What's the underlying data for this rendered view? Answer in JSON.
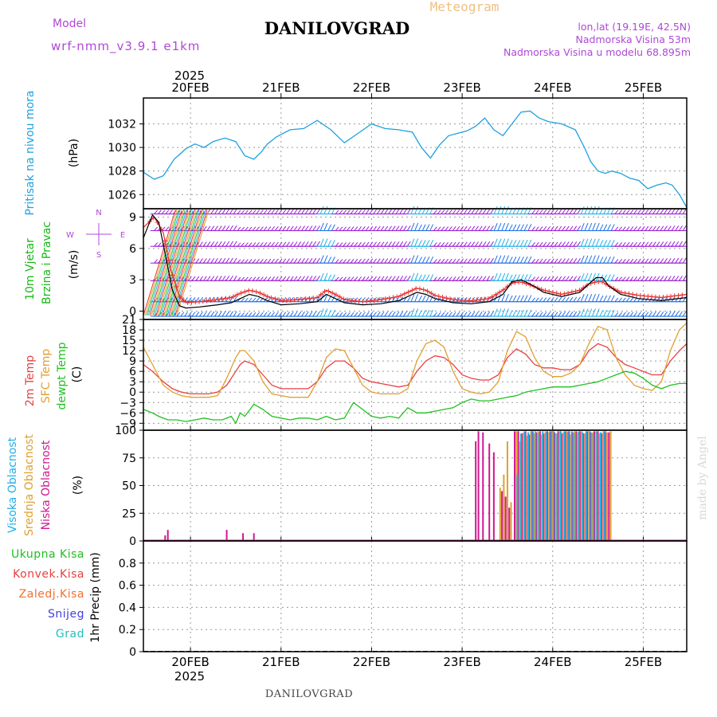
{
  "header": {
    "meteogram_label": "Meteogram",
    "model_label": "Model",
    "model_name": "wrf-nmm_v3.9.1 e1km",
    "station_title": "DANILOVGRAD",
    "lonlat": "lon,lat (19.19E, 42.5N)",
    "altitude": "Nadmorska Visina 53m",
    "model_altitude": "Nadmorska Visina u modelu 68.895m",
    "footer_station": "DANILOVGRAD",
    "credit": "made by Angel"
  },
  "colors": {
    "pressure": "#1fa0e0",
    "wind_label": "#18b818",
    "wind_barb_purple": "#9a1fd6",
    "wind_barb_blue": "#1f6fe8",
    "wind_barb_cyan": "#1fb0e8",
    "wind_gust": "#e83030",
    "wind_speed_line": "#000000",
    "temp_2m": "#e84040",
    "sfc_temp": "#e0a030",
    "dewpt": "#20c020",
    "cloud_high": "#1fb0e8",
    "cloud_mid": "#e0a030",
    "cloud_low": "#d01890",
    "precip_total": "#20c020",
    "precip_conv": "#e84040",
    "precip_frozen": "#f07030",
    "precip_snow": "#4040e0",
    "precip_grad": "#20c0c0",
    "title_purple": "#b048d8",
    "meteogram_gold": "#f0c080"
  },
  "chart_data": [
    {
      "type": "line",
      "panel": "pressure",
      "ylabel": "(hPa)",
      "side_labels": [
        "Pritisak na nivou mora"
      ],
      "x_unit": "days since 20FEB 00:00",
      "xlim": [
        -0.52,
        5.48
      ],
      "ylim": [
        1024.8,
        1034.2
      ],
      "yticks": [
        1026,
        1028,
        1030,
        1032
      ],
      "series": [
        {
          "name": "Pritisak na nivou mora",
          "x": [
            -0.52,
            -0.4,
            -0.3,
            -0.18,
            -0.05,
            0.05,
            0.15,
            0.25,
            0.38,
            0.5,
            0.6,
            0.7,
            0.78,
            0.85,
            0.95,
            1.1,
            1.25,
            1.4,
            1.55,
            1.7,
            1.85,
            2.0,
            2.15,
            2.3,
            2.45,
            2.55,
            2.65,
            2.75,
            2.85,
            2.95,
            3.05,
            3.15,
            3.25,
            3.35,
            3.45,
            3.55,
            3.65,
            3.75,
            3.85,
            3.95,
            4.1,
            4.25,
            4.35,
            4.42,
            4.5,
            4.58,
            4.65,
            4.75,
            4.85,
            4.95,
            5.05,
            5.15,
            5.25,
            5.32,
            5.4,
            5.48
          ],
          "values": [
            1027.9,
            1027.3,
            1027.6,
            1029.0,
            1029.9,
            1030.3,
            1030.0,
            1030.5,
            1030.8,
            1030.5,
            1029.3,
            1029.0,
            1029.6,
            1030.3,
            1030.9,
            1031.5,
            1031.6,
            1032.3,
            1031.5,
            1030.4,
            1031.2,
            1032.0,
            1031.6,
            1031.5,
            1031.3,
            1030.0,
            1029.1,
            1030.2,
            1031.0,
            1031.2,
            1031.4,
            1031.8,
            1032.5,
            1031.5,
            1031.0,
            1032.0,
            1033.0,
            1033.1,
            1032.5,
            1032.2,
            1032.0,
            1031.5,
            1030.0,
            1028.8,
            1028.0,
            1027.8,
            1028.0,
            1027.8,
            1027.4,
            1027.2,
            1026.5,
            1026.8,
            1027.0,
            1026.8,
            1026.0,
            1024.9
          ]
        }
      ]
    },
    {
      "type": "line",
      "panel": "wind",
      "ylabel": "(m/s)",
      "side_labels": [
        "10m Vjetar",
        "Brzina i Pravac"
      ],
      "compass": [
        "N",
        "S",
        "W",
        "E"
      ],
      "x_unit": "days since 20FEB 00:00",
      "xlim": [
        -0.52,
        5.48
      ],
      "ylim": [
        -0.8,
        9.8
      ],
      "yticks": [
        0,
        3,
        6,
        9
      ],
      "barb_levels": [
        -0.5,
        0.9,
        2.9,
        4.6,
        6.2,
        7.7,
        9.3
      ],
      "series": [
        {
          "name": "Brzina",
          "x": [
            -0.52,
            -0.42,
            -0.35,
            -0.28,
            -0.2,
            -0.12,
            -0.05,
            0.1,
            0.3,
            0.45,
            0.55,
            0.65,
            0.75,
            0.85,
            1.0,
            1.2,
            1.4,
            1.5,
            1.6,
            1.7,
            1.9,
            2.1,
            2.3,
            2.4,
            2.5,
            2.6,
            2.7,
            2.9,
            3.1,
            3.3,
            3.45,
            3.55,
            3.65,
            3.75,
            3.9,
            4.1,
            4.3,
            4.4,
            4.48,
            4.55,
            4.62,
            4.75,
            4.95,
            5.2,
            5.48
          ],
          "values": [
            7.0,
            9.2,
            8.5,
            5.5,
            2.0,
            0.5,
            0.3,
            0.4,
            0.6,
            0.8,
            1.2,
            1.6,
            1.4,
            1.0,
            0.6,
            0.7,
            0.9,
            1.6,
            1.2,
            0.8,
            0.6,
            0.7,
            1.0,
            1.4,
            1.8,
            1.6,
            1.2,
            0.8,
            0.7,
            0.9,
            1.6,
            2.8,
            3.0,
            2.6,
            1.8,
            1.4,
            1.8,
            2.6,
            3.2,
            3.2,
            2.4,
            1.6,
            1.2,
            1.0,
            1.3
          ]
        },
        {
          "name": "Udar",
          "x": [
            -0.52,
            -0.4,
            -0.3,
            -0.22,
            -0.12,
            -0.05,
            0.1,
            0.3,
            0.45,
            0.55,
            0.65,
            0.75,
            0.85,
            1.0,
            1.2,
            1.4,
            1.5,
            1.6,
            1.7,
            1.9,
            2.1,
            2.3,
            2.4,
            2.5,
            2.6,
            2.7,
            2.9,
            3.1,
            3.3,
            3.45,
            3.55,
            3.65,
            3.75,
            3.9,
            4.1,
            4.3,
            4.4,
            4.48,
            4.55,
            4.62,
            4.75,
            4.95,
            5.2,
            5.48
          ],
          "values": [
            8.0,
            9.0,
            7.5,
            4.0,
            1.4,
            0.8,
            0.9,
            1.1,
            1.3,
            1.7,
            2.0,
            1.8,
            1.4,
            1.0,
            1.1,
            1.3,
            2.0,
            1.6,
            1.1,
            0.9,
            1.1,
            1.4,
            1.8,
            2.2,
            2.0,
            1.5,
            1.1,
            1.0,
            1.2,
            2.0,
            2.7,
            2.8,
            2.5,
            2.0,
            1.6,
            2.0,
            2.6,
            2.8,
            2.8,
            2.4,
            1.8,
            1.5,
            1.3,
            1.6
          ]
        }
      ]
    },
    {
      "type": "line",
      "panel": "temperature",
      "ylabel": "(C)",
      "side_labels": [
        "2m Temp",
        "SFC Temp",
        "dewpt Temp"
      ],
      "x_unit": "days since 20FEB 00:00",
      "xlim": [
        -0.52,
        5.48
      ],
      "ylim": [
        -11,
        21
      ],
      "yticks": [
        -9,
        -6,
        -3,
        0,
        3,
        6,
        9,
        12,
        15,
        18,
        21
      ],
      "series": [
        {
          "name": "2m Temp",
          "x": [
            -0.52,
            -0.42,
            -0.3,
            -0.2,
            -0.1,
            0.0,
            0.1,
            0.2,
            0.3,
            0.4,
            0.5,
            0.55,
            0.6,
            0.7,
            0.8,
            0.9,
            1.0,
            1.1,
            1.2,
            1.3,
            1.4,
            1.5,
            1.6,
            1.7,
            1.8,
            1.9,
            2.0,
            2.1,
            2.2,
            2.3,
            2.4,
            2.5,
            2.6,
            2.7,
            2.8,
            2.9,
            3.0,
            3.1,
            3.2,
            3.3,
            3.4,
            3.5,
            3.6,
            3.7,
            3.8,
            3.9,
            4.0,
            4.1,
            4.2,
            4.3,
            4.4,
            4.5,
            4.6,
            4.7,
            4.8,
            4.9,
            5.0,
            5.1,
            5.2,
            5.3,
            5.4,
            5.48
          ],
          "values": [
            8,
            6,
            3,
            1,
            0,
            -0.5,
            -0.5,
            -0.5,
            0,
            2,
            6,
            8,
            9,
            8,
            5,
            2,
            1,
            1,
            1,
            1,
            3,
            7,
            9,
            9,
            7,
            4,
            3,
            2.5,
            2,
            1.5,
            2,
            6,
            9,
            10.5,
            10,
            8,
            5,
            4,
            3.5,
            3.5,
            5,
            10,
            12.5,
            11,
            8,
            7,
            7,
            6.5,
            6.5,
            8,
            12,
            14,
            13,
            10,
            8,
            7,
            6,
            5,
            5,
            9,
            12,
            14
          ]
        },
        {
          "name": "SFC Temp",
          "x": [
            -0.52,
            -0.42,
            -0.3,
            -0.2,
            -0.1,
            0.0,
            0.1,
            0.2,
            0.3,
            0.4,
            0.5,
            0.55,
            0.6,
            0.7,
            0.8,
            0.9,
            1.0,
            1.1,
            1.2,
            1.3,
            1.4,
            1.5,
            1.6,
            1.7,
            1.8,
            1.9,
            2.0,
            2.1,
            2.2,
            2.3,
            2.4,
            2.5,
            2.6,
            2.7,
            2.8,
            2.9,
            3.0,
            3.1,
            3.2,
            3.3,
            3.4,
            3.5,
            3.6,
            3.7,
            3.8,
            3.9,
            4.0,
            4.1,
            4.2,
            4.3,
            4.4,
            4.5,
            4.6,
            4.7,
            4.8,
            4.9,
            5.0,
            5.1,
            5.2,
            5.3,
            5.4,
            5.48
          ],
          "values": [
            13,
            8,
            2,
            0,
            -1,
            -1.5,
            -1.5,
            -1.5,
            -1,
            4,
            10,
            12,
            12,
            9,
            3,
            -0.5,
            -1,
            -1.5,
            -1.5,
            -1.5,
            3,
            10,
            12.5,
            12,
            7,
            2,
            0,
            -0.5,
            -0.5,
            -0.5,
            1,
            9,
            14,
            15,
            13,
            6,
            1,
            0,
            -0.5,
            0,
            3,
            12,
            17.5,
            16,
            10,
            6,
            4.5,
            4.5,
            5.5,
            8,
            14,
            19,
            18,
            10,
            5,
            2,
            1,
            0.5,
            3,
            12,
            18,
            20
          ]
        },
        {
          "name": "dewpt Temp",
          "x": [
            -0.52,
            -0.42,
            -0.35,
            -0.25,
            -0.15,
            -0.05,
            0.05,
            0.15,
            0.25,
            0.35,
            0.45,
            0.5,
            0.55,
            0.6,
            0.7,
            0.8,
            0.9,
            1.0,
            1.1,
            1.2,
            1.3,
            1.4,
            1.5,
            1.6,
            1.7,
            1.8,
            1.9,
            2.0,
            2.1,
            2.2,
            2.3,
            2.4,
            2.5,
            2.6,
            2.7,
            2.8,
            2.9,
            3.0,
            3.1,
            3.2,
            3.3,
            3.4,
            3.5,
            3.6,
            3.7,
            3.8,
            3.9,
            4.0,
            4.1,
            4.2,
            4.3,
            4.4,
            4.5,
            4.6,
            4.7,
            4.8,
            4.9,
            5.0,
            5.1,
            5.2,
            5.3,
            5.4,
            5.48
          ],
          "values": [
            -5,
            -6,
            -7,
            -8,
            -8,
            -8.5,
            -8,
            -7.5,
            -8,
            -8,
            -7,
            -9,
            -6,
            -7,
            -3.5,
            -5,
            -7,
            -7.5,
            -8,
            -7.5,
            -7.5,
            -8,
            -7,
            -8,
            -7.5,
            -3,
            -5,
            -7,
            -7.5,
            -7,
            -7.5,
            -4.5,
            -6,
            -6,
            -5.5,
            -5,
            -4.5,
            -3,
            -2,
            -2.5,
            -2.5,
            -2,
            -1.5,
            -1,
            0,
            0.5,
            1,
            1.5,
            1.5,
            1.5,
            2,
            2.5,
            3,
            4,
            5,
            6,
            5.5,
            4,
            2,
            1,
            2,
            2.5,
            2.5
          ]
        }
      ]
    },
    {
      "type": "bar",
      "panel": "clouds",
      "ylabel": "(%)",
      "side_labels": [
        "Visoka Oblacnost",
        "Srednja Oblacnost",
        "Niska Oblacnost"
      ],
      "x_unit": "days since 20FEB 00:00",
      "xlim": [
        -0.52,
        5.48
      ],
      "ylim": [
        0,
        100
      ],
      "yticks": [
        0,
        25,
        50,
        75,
        100
      ],
      "series": [
        {
          "name": "Niska Oblacnost",
          "x": [
            -0.28,
            -0.25,
            0.4,
            0.58,
            0.7,
            3.15,
            3.18,
            3.23,
            3.3,
            3.35,
            3.44,
            3.48,
            3.52,
            3.58,
            3.62,
            3.66,
            3.7,
            3.74,
            3.78,
            3.82,
            3.86,
            3.9,
            3.94,
            3.98,
            4.02,
            4.06,
            4.1,
            4.14,
            4.18,
            4.22,
            4.26,
            4.3,
            4.34,
            4.38,
            4.42,
            4.46,
            4.5,
            4.54,
            4.58,
            4.62
          ],
          "values": [
            5,
            10,
            10,
            7,
            7,
            90,
            99,
            98,
            88,
            80,
            45,
            40,
            30,
            99,
            99,
            97,
            99,
            96,
            99,
            98,
            99,
            97,
            99,
            99,
            98,
            99,
            97,
            99,
            99,
            98,
            99,
            99,
            97,
            99,
            98,
            99,
            99,
            97,
            99,
            98
          ]
        },
        {
          "name": "Srednja Oblacnost",
          "x": [
            3.42,
            3.46,
            3.5,
            3.54,
            3.6,
            3.64,
            3.68,
            3.72,
            3.76,
            3.8,
            3.84,
            3.88,
            3.92,
            3.96,
            4.0,
            4.04,
            4.08,
            4.12,
            4.16,
            4.2,
            4.24,
            4.28,
            4.32,
            4.36,
            4.4,
            4.44,
            4.48,
            4.52,
            4.56,
            4.6,
            4.64
          ],
          "values": [
            48,
            60,
            90,
            35,
            99,
            90,
            98,
            95,
            99,
            97,
            99,
            96,
            99,
            98,
            99,
            97,
            99,
            98,
            99,
            96,
            99,
            98,
            99,
            97,
            99,
            98,
            99,
            97,
            99,
            98,
            99
          ]
        },
        {
          "name": "Visoka Oblacnost",
          "x": [
            3.61,
            3.65,
            3.69,
            3.73,
            3.77,
            3.81,
            3.85,
            3.89,
            3.93,
            3.97,
            4.01,
            4.05,
            4.09,
            4.13,
            4.17,
            4.21,
            4.25,
            4.29,
            4.33,
            4.37,
            4.41,
            4.45,
            4.49,
            4.53,
            4.57
          ],
          "values": [
            60,
            97,
            99,
            98,
            99,
            99,
            97,
            99,
            98,
            99,
            99,
            97,
            99,
            99,
            98,
            99,
            97,
            99,
            98,
            99,
            99,
            97,
            99,
            98,
            99
          ]
        }
      ]
    },
    {
      "type": "bar",
      "panel": "precip",
      "ylabel": "1hr Precip (mm)",
      "side_labels": [
        "Ukupna Kisa",
        "Konvek.Kisa",
        "Zaledj.Kisa",
        "Snijeg",
        "Grad"
      ],
      "x_unit": "days since 20FEB 00:00",
      "xlim": [
        -0.52,
        5.48
      ],
      "ylim": [
        0,
        1.0
      ],
      "yticks": [
        0,
        0.2,
        0.4,
        0.6,
        0.8
      ],
      "series": [
        {
          "name": "Ukupna Kisa",
          "values": []
        }
      ]
    }
  ],
  "x_axis": {
    "year": "2025",
    "day_ticks": [
      {
        "x": 0,
        "label": "20FEB"
      },
      {
        "x": 1,
        "label": "21FEB"
      },
      {
        "x": 2,
        "label": "22FEB"
      },
      {
        "x": 3,
        "label": "23FEB"
      },
      {
        "x": 4,
        "label": "24FEB"
      },
      {
        "x": 5,
        "label": "25FEB"
      }
    ]
  }
}
